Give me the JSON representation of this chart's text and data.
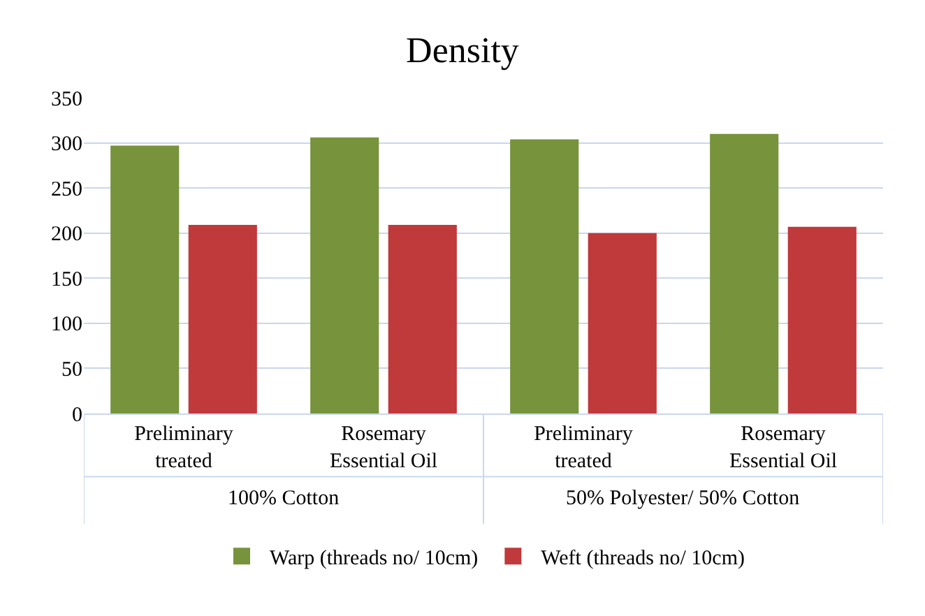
{
  "chart_data": {
    "type": "bar",
    "title": "Density",
    "categories": [
      "Preliminary treated",
      "Rosemary Essential Oil",
      "Preliminary treated",
      "Rosemary Essential Oil"
    ],
    "series": [
      {
        "name": "Warp (threads no/ 10cm)",
        "color": "#77933c",
        "values": [
          297,
          306,
          304,
          310
        ]
      },
      {
        "name": "Weft (threads no/ 10cm)",
        "color": "#c0393b",
        "values": [
          209,
          209,
          200,
          207
        ]
      }
    ],
    "annotations": [
      "100% Cotton",
      "50% Polyester/ 50% Cotton"
    ],
    "ylim": [
      0,
      350
    ],
    "yticks": [
      0,
      50,
      100,
      150,
      200,
      250,
      300,
      350
    ],
    "grid": "y",
    "legend": "bottom"
  }
}
